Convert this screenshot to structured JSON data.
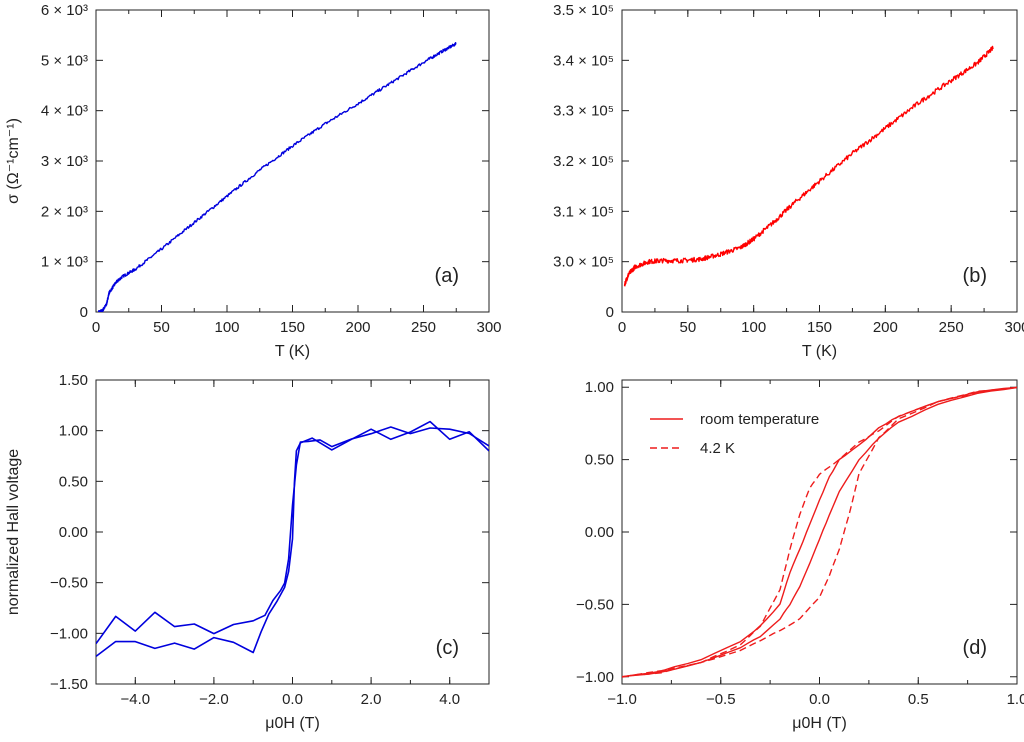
{
  "chart_data": [
    {
      "id": "a",
      "type": "line",
      "panel_label": "(a)",
      "xlabel": "T (K)",
      "ylabel": "σ (Ω⁻¹cm⁻¹)",
      "xlim": [
        0,
        300
      ],
      "ylim": [
        0,
        6000
      ],
      "x_ticks": [
        0,
        50,
        100,
        150,
        200,
        250,
        300
      ],
      "x_tick_labels": [
        "0",
        "50",
        "100",
        "150",
        "200",
        "250",
        "300"
      ],
      "y_ticks": [
        0,
        1000,
        2000,
        3000,
        4000,
        5000,
        6000
      ],
      "y_tick_labels": [
        "0",
        "1 × 10³",
        "2 × 10³",
        "3 × 10³",
        "4 × 10³",
        "5 × 10³",
        "6 × 10³"
      ],
      "color": "#0000dd",
      "series": [
        {
          "x": [
            2,
            5,
            8,
            10,
            15,
            20,
            30,
            50,
            75,
            100,
            125,
            150,
            175,
            200,
            225,
            250,
            265,
            275
          ],
          "values": [
            0,
            30,
            150,
            380,
            580,
            700,
            850,
            1250,
            1780,
            2300,
            2820,
            3300,
            3740,
            4140,
            4550,
            4960,
            5190,
            5330
          ]
        }
      ]
    },
    {
      "id": "b",
      "type": "line",
      "panel_label": "(b)",
      "xlabel": "T (K)",
      "ylabel": "",
      "xlim": [
        0,
        300
      ],
      "y_axis_break": "0 to 3.0 × 10⁵ axis break",
      "x_ticks": [
        0,
        50,
        100,
        150,
        200,
        250,
        300
      ],
      "x_tick_labels": [
        "0",
        "50",
        "100",
        "150",
        "200",
        "250",
        "300"
      ],
      "y_tick_labels": [
        "0",
        "3.0 × 10⁵",
        "3.1 × 10⁵",
        "3.2 × 10⁵",
        "3.3 × 10⁵",
        "3.4 × 10⁵",
        "3.5 × 10⁵"
      ],
      "color": "#ff0000",
      "series": [
        {
          "x": [
            2,
            5,
            10,
            20,
            30,
            45,
            60,
            75,
            90,
            100,
            115,
            130,
            150,
            175,
            200,
            225,
            250,
            270,
            282
          ],
          "values": [
            295500,
            297500,
            299000,
            300000,
            300200,
            300200,
            300500,
            301500,
            302800,
            304500,
            307800,
            311500,
            316000,
            321500,
            326500,
            331500,
            336000,
            339500,
            342500
          ]
        }
      ]
    },
    {
      "id": "c",
      "type": "line",
      "panel_label": "(c)",
      "xlabel": "μ0H (T)",
      "ylabel": "normalized Hall voltage",
      "xlim": [
        -5,
        5
      ],
      "ylim": [
        -1.5,
        1.5
      ],
      "x_ticks": [
        -4,
        -2,
        0,
        2,
        4
      ],
      "x_tick_labels": [
        "−4.0",
        "−2.0",
        "0.0",
        "2.0",
        "4.0"
      ],
      "y_ticks": [
        -1.5,
        -1.0,
        -0.5,
        0,
        0.5,
        1.0,
        1.5
      ],
      "y_tick_labels": [
        "−1.50",
        "−1.00",
        "−0.50",
        "0.00",
        "0.50",
        "1.00",
        "1.50"
      ],
      "color": "#0000dd",
      "series": [
        {
          "x": [
            -5.0,
            -4.5,
            -4.0,
            -3.5,
            -3.0,
            -2.5,
            -2.0,
            -1.5,
            -1.0,
            -0.7,
            -0.5,
            -0.3,
            -0.2,
            -0.1,
            0.0,
            0.1,
            0.2,
            0.4,
            0.7,
            1.0,
            1.5,
            2.0,
            2.5,
            3.0,
            3.5,
            4.0,
            4.5,
            5.0
          ],
          "values": [
            -1.1,
            -0.85,
            -0.95,
            -0.85,
            -0.9,
            -0.85,
            -0.95,
            -0.9,
            -0.9,
            -0.8,
            -0.7,
            -0.6,
            -0.45,
            -0.3,
            0.3,
            0.7,
            0.85,
            0.9,
            0.95,
            0.9,
            0.95,
            1.0,
            1.05,
            0.95,
            1.0,
            1.0,
            1.0,
            0.85
          ]
        },
        {
          "x": [
            -5.0,
            -4.5,
            -4.0,
            -3.5,
            -3.0,
            -2.5,
            -2.0,
            -1.5,
            -1.0,
            -0.8,
            -0.6,
            -0.4,
            -0.2,
            -0.1,
            0.0,
            0.05,
            0.1,
            0.2,
            0.5,
            1.0,
            1.5,
            2.0,
            2.5,
            3.0,
            3.5,
            4.0,
            4.5,
            5.0
          ],
          "values": [
            -1.2,
            -1.05,
            -1.1,
            -1.1,
            -1.05,
            -1.1,
            -1.05,
            -1.1,
            -1.15,
            -1.0,
            -0.8,
            -0.65,
            -0.5,
            -0.35,
            -0.1,
            0.5,
            0.75,
            0.85,
            0.9,
            0.85,
            0.95,
            1.05,
            0.95,
            1.0,
            1.05,
            0.95,
            1.0,
            0.8
          ]
        }
      ]
    },
    {
      "id": "d",
      "type": "line",
      "panel_label": "(d)",
      "xlabel": "μ0H (T)",
      "ylabel": "",
      "xlim": [
        -1,
        1
      ],
      "ylim": [
        -1.05,
        1.05
      ],
      "x_ticks": [
        -1,
        -0.5,
        0,
        0.5,
        1
      ],
      "x_tick_labels": [
        "−1.0",
        "−0.5",
        "0.0",
        "0.5",
        "1.0"
      ],
      "y_ticks": [
        -1.0,
        -0.5,
        0,
        0.5,
        1.0
      ],
      "y_tick_labels": [
        "−1.00",
        "−0.50",
        "0.00",
        "0.50",
        "1.00"
      ],
      "color": "#ee1c1c",
      "legend_position": "top-left",
      "series": [
        {
          "name": "room temperature",
          "style": "solid",
          "x": [
            -1.0,
            -0.8,
            -0.6,
            -0.4,
            -0.3,
            -0.2,
            -0.15,
            -0.1,
            -0.05,
            0.0,
            0.05,
            0.1,
            0.2,
            0.3,
            0.4,
            0.6,
            0.8,
            1.0,
            0.8,
            0.6,
            0.4,
            0.3,
            0.2,
            0.1,
            0.05,
            0.0,
            -0.05,
            -0.1,
            -0.15,
            -0.2,
            -0.3,
            -0.4,
            -0.6,
            -0.8,
            -1.0
          ],
          "values": [
            -1.0,
            -0.97,
            -0.9,
            -0.8,
            -0.72,
            -0.6,
            -0.5,
            -0.38,
            -0.22,
            -0.05,
            0.12,
            0.28,
            0.5,
            0.65,
            0.76,
            0.88,
            0.96,
            1.0,
            0.97,
            0.9,
            0.8,
            0.72,
            0.6,
            0.5,
            0.38,
            0.22,
            0.05,
            -0.12,
            -0.28,
            -0.5,
            -0.65,
            -0.76,
            -0.88,
            -0.96,
            -1.0
          ]
        },
        {
          "name": "4.2 K",
          "style": "dashed",
          "x": [
            -1.0,
            -0.8,
            -0.6,
            -0.4,
            -0.3,
            -0.2,
            -0.1,
            0.0,
            0.05,
            0.1,
            0.15,
            0.2,
            0.3,
            0.4,
            0.6,
            0.8,
            1.0,
            0.8,
            0.6,
            0.4,
            0.3,
            0.2,
            0.1,
            0.0,
            -0.05,
            -0.1,
            -0.15,
            -0.2,
            -0.3,
            -0.4,
            -0.6,
            -0.8,
            -1.0
          ],
          "values": [
            -1.0,
            -0.97,
            -0.9,
            -0.82,
            -0.75,
            -0.68,
            -0.6,
            -0.45,
            -0.3,
            -0.12,
            0.12,
            0.4,
            0.65,
            0.78,
            0.9,
            0.96,
            1.0,
            0.97,
            0.9,
            0.8,
            0.7,
            0.62,
            0.5,
            0.4,
            0.3,
            0.12,
            -0.12,
            -0.4,
            -0.65,
            -0.78,
            -0.9,
            -0.96,
            -1.0
          ]
        }
      ]
    }
  ]
}
